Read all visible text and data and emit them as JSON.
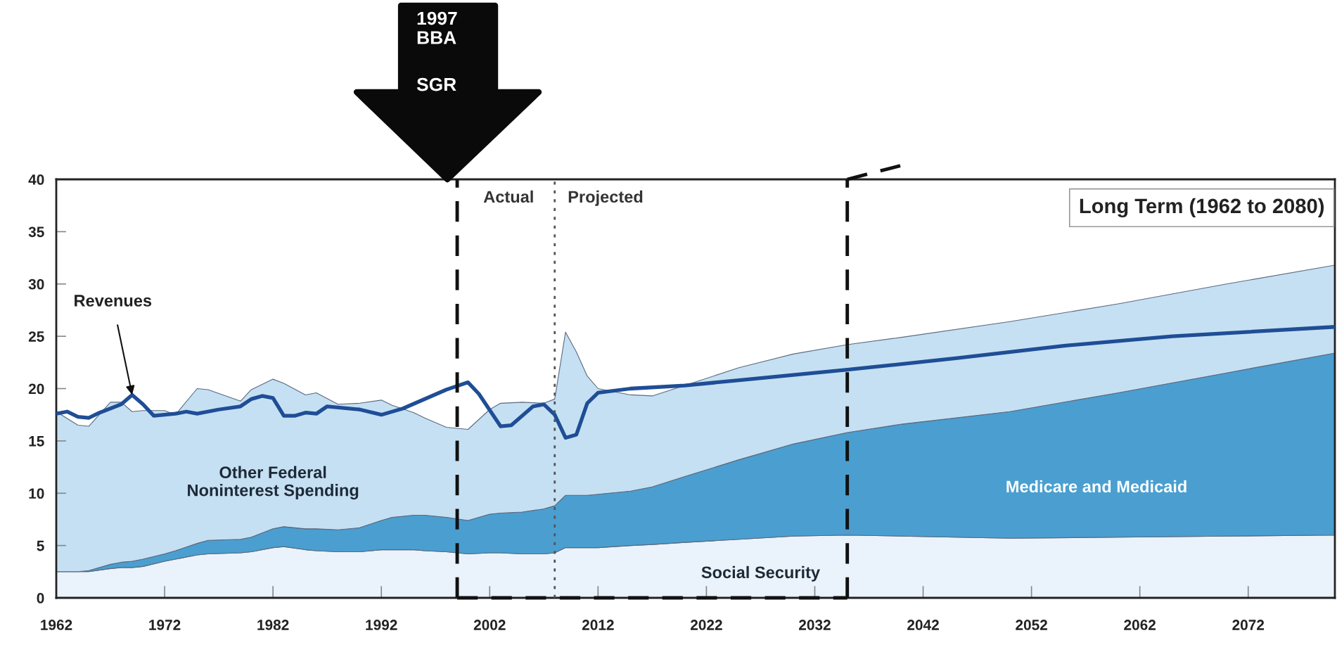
{
  "chart_data": {
    "type": "area",
    "stacked": true,
    "x": [
      1962,
      1964,
      1965,
      1967,
      1968,
      1969,
      1970,
      1972,
      1973,
      1975,
      1976,
      1979,
      1980,
      1982,
      1983,
      1985,
      1986,
      1988,
      1990,
      1992,
      1993,
      1995,
      1996,
      1998,
      2000,
      2002,
      2003,
      2005,
      2007,
      2008,
      2009,
      2010,
      2011,
      2012,
      2015,
      2017,
      2020,
      2025,
      2030,
      2035,
      2040,
      2050,
      2060,
      2070,
      2080
    ],
    "series": [
      {
        "name": "Social Security",
        "color": "#eaf3fb",
        "values": [
          2.5,
          2.5,
          2.5,
          2.8,
          2.9,
          2.9,
          3.0,
          3.5,
          3.7,
          4.1,
          4.2,
          4.3,
          4.4,
          4.8,
          4.9,
          4.6,
          4.5,
          4.4,
          4.4,
          4.6,
          4.6,
          4.6,
          4.5,
          4.4,
          4.2,
          4.3,
          4.3,
          4.2,
          4.2,
          4.3,
          4.8,
          4.8,
          4.8,
          4.8,
          5.0,
          5.1,
          5.3,
          5.6,
          5.9,
          6.0,
          5.9,
          5.7,
          5.8,
          5.9,
          6.0
        ]
      },
      {
        "name": "Medicare and Medicaid",
        "color": "#4a9fd0",
        "values": [
          0.0,
          0.0,
          0.1,
          0.4,
          0.5,
          0.6,
          0.7,
          0.7,
          0.8,
          1.1,
          1.3,
          1.3,
          1.4,
          1.8,
          1.9,
          2.0,
          2.1,
          2.1,
          2.3,
          2.8,
          3.1,
          3.3,
          3.4,
          3.3,
          3.2,
          3.7,
          3.8,
          4.0,
          4.3,
          4.5,
          5.0,
          5.0,
          5.0,
          5.1,
          5.2,
          5.5,
          6.3,
          7.6,
          8.8,
          9.8,
          10.7,
          12.1,
          13.8,
          15.6,
          17.4
        ]
      },
      {
        "name": "Other Federal\nNoninterest Spending",
        "color": "#c6e0f3",
        "values": [
          15.3,
          14.0,
          13.8,
          15.5,
          15.3,
          14.3,
          14.2,
          13.7,
          13.0,
          14.8,
          14.4,
          13.2,
          14.1,
          14.3,
          13.7,
          12.8,
          13.0,
          12.0,
          11.9,
          11.5,
          10.7,
          9.8,
          9.3,
          8.6,
          8.7,
          10.0,
          10.5,
          10.5,
          10.1,
          10.2,
          15.6,
          13.7,
          11.4,
          10.1,
          9.2,
          8.7,
          8.7,
          8.8,
          8.6,
          8.4,
          8.3,
          8.6,
          8.5,
          8.5,
          8.4
        ]
      },
      {
        "type": "line",
        "color": "#1f4e96",
        "x": [
          1962,
          1963,
          1964,
          1965,
          1966,
          1968,
          1969,
          1970,
          1971,
          1973,
          1974,
          1975,
          1977,
          1979,
          1980,
          1981,
          1982,
          1983,
          1984,
          1985,
          1986,
          1987,
          1990,
          1992,
          1994,
          1998,
          2000,
          2001,
          2003,
          2004,
          2006,
          2007,
          2008,
          2009,
          2010,
          2011,
          2012,
          2015,
          2020,
          2025,
          2035,
          2045,
          2055,
          2065,
          2080
        ],
        "values": [
          17.6,
          17.8,
          17.3,
          17.2,
          17.7,
          18.5,
          19.4,
          18.5,
          17.4,
          17.6,
          17.8,
          17.6,
          18.0,
          18.3,
          19.0,
          19.3,
          19.1,
          17.4,
          17.4,
          17.7,
          17.6,
          18.3,
          18.0,
          17.5,
          18.1,
          19.9,
          20.6,
          19.5,
          16.4,
          16.5,
          18.3,
          18.5,
          17.5,
          15.3,
          15.6,
          18.6,
          19.6,
          20.0,
          20.3,
          20.8,
          21.8,
          22.9,
          24.1,
          25.0,
          25.9
        ]
      }
    ],
    "xlim": [
      1962,
      2080
    ],
    "ylim": [
      0,
      40
    ],
    "xticks": [
      1962,
      1972,
      1982,
      1992,
      2002,
      2012,
      2022,
      2032,
      2042,
      2052,
      2062,
      2072
    ],
    "yticks": [
      0,
      5,
      10,
      15,
      20,
      25,
      30,
      35,
      40
    ],
    "line_style": "solid",
    "ref_lines": [
      {
        "axis": "x",
        "value": 1999,
        "line_style": "dashed",
        "color": "#111111"
      },
      {
        "axis": "x",
        "value": 2008,
        "line_style": "dotted",
        "color": "#555555"
      },
      {
        "axis": "x",
        "value": 2035,
        "line_style": "dashed",
        "color": "#111111"
      }
    ],
    "annotations": [
      {
        "text": "Revenues",
        "x": 1969,
        "y": 19.4
      },
      "Actual",
      "Projected",
      "1997\nBBA",
      "SGR",
      "Long Term (1962 to 2080)"
    ]
  }
}
